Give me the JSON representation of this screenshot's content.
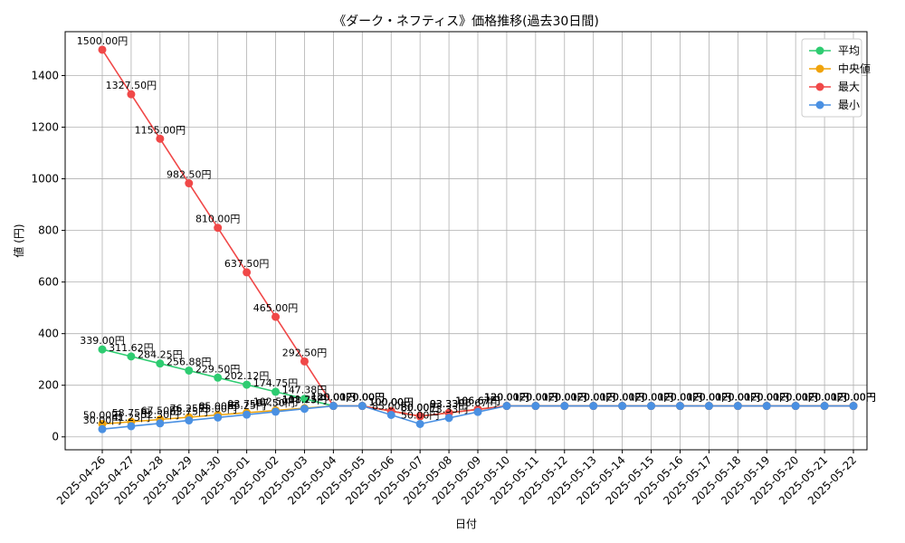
{
  "chart_data": {
    "type": "line",
    "title": "《ダーク・ネフティス》価格推移(過去30日間)",
    "xlabel": "日付",
    "ylabel": "値 (円)",
    "ylim": [
      -50,
      1570
    ],
    "yticks": [
      0,
      200,
      400,
      600,
      800,
      1000,
      1200,
      1400
    ],
    "grid": true,
    "legend_position": "top-right",
    "categories": [
      "2025-04-26",
      "2025-04-27",
      "2025-04-28",
      "2025-04-29",
      "2025-04-30",
      "2025-05-01",
      "2025-05-02",
      "2025-05-03",
      "2025-05-04",
      "2025-05-05",
      "2025-05-06",
      "2025-05-07",
      "2025-05-08",
      "2025-05-09",
      "2025-05-10",
      "2025-05-11",
      "2025-05-12",
      "2025-05-13",
      "2025-05-14",
      "2025-05-15",
      "2025-05-16",
      "2025-05-17",
      "2025-05-18",
      "2025-05-19",
      "2025-05-20",
      "2025-05-21",
      "2025-05-22"
    ],
    "series": [
      {
        "name": "平均",
        "color": "#2ecc71",
        "values": [
          339.0,
          311.62,
          284.25,
          256.88,
          229.5,
          202.12,
          174.75,
          147.38,
          120.0,
          120.0,
          100.0,
          80.0,
          93.33,
          106.67,
          120.0,
          120.0,
          120.0,
          120.0,
          120.0,
          120.0,
          120.0,
          120.0,
          120.0,
          120.0,
          120.0,
          120.0,
          120.0
        ],
        "labels": [
          "339.00円",
          "311.62円",
          "284.25円",
          "256.88円",
          "229.50円",
          "202.12円",
          "174.75円",
          "147.38円",
          "120.00円",
          "120.00円",
          "100.00円",
          "80.00円",
          "93.33円",
          "106.67円",
          "120.00円",
          "120.00円",
          "120.00円",
          "120.00円",
          "120.00円",
          "120.00円",
          "120.00円",
          "120.00円",
          "120.00円",
          "120.00円",
          "120.00円",
          "120.00円",
          "120.00円"
        ]
      },
      {
        "name": "中央値",
        "color": "#f0a30a",
        "values": [
          50.0,
          58.75,
          67.5,
          76.25,
          85.0,
          93.75,
          102.5,
          111.25,
          120.0,
          120.0,
          100.0,
          80.0,
          93.33,
          106.67,
          120.0,
          120.0,
          120.0,
          120.0,
          120.0,
          120.0,
          120.0,
          120.0,
          120.0,
          120.0,
          120.0,
          120.0,
          120.0
        ],
        "labels": [
          "50.00円",
          "58.75円",
          "67.50円",
          "76.25円",
          "85.00円",
          "93.75円",
          "102.50円",
          "111.25円",
          "120.00円",
          "120.00円",
          "100.00円",
          "80.00円",
          "93.33円",
          "106.67円",
          "120.00円",
          "120.00円",
          "120.00円",
          "120.00円",
          "120.00円",
          "120.00円",
          "120.00円",
          "120.00円",
          "120.00円",
          "120.00円",
          "120.00円",
          "120.00円",
          "120.00円"
        ]
      },
      {
        "name": "最大",
        "color": "#f04848",
        "values": [
          1500.0,
          1327.5,
          1155.0,
          982.5,
          810.0,
          637.5,
          465.0,
          292.5,
          120.0,
          120.0,
          100.0,
          80.0,
          93.33,
          106.67,
          120.0,
          120.0,
          120.0,
          120.0,
          120.0,
          120.0,
          120.0,
          120.0,
          120.0,
          120.0,
          120.0,
          120.0,
          120.0
        ],
        "labels": [
          "1500.00円",
          "1327.50円",
          "1155.00円",
          "982.50円",
          "810.00円",
          "637.50円",
          "465.00円",
          "292.50円",
          "120.00円",
          "120.00円",
          "100.00円",
          "80.00円",
          "93.33円",
          "106.67円",
          "120.00円",
          "120.00円",
          "120.00円",
          "120.00円",
          "120.00円",
          "120.00円",
          "120.00円",
          "120.00円",
          "120.00円",
          "120.00円",
          "120.00円",
          "120.00円",
          "120.00円"
        ]
      },
      {
        "name": "最小",
        "color": "#4a90e2",
        "values": [
          30.0,
          41.25,
          52.5,
          63.75,
          75.0,
          86.25,
          97.5,
          108.75,
          120.0,
          120.0,
          85.0,
          50.0,
          73.33,
          96.67,
          120.0,
          120.0,
          120.0,
          120.0,
          120.0,
          120.0,
          120.0,
          120.0,
          120.0,
          120.0,
          120.0,
          120.0,
          120.0
        ],
        "labels": [
          "30.00円",
          "41.25円",
          "52.50円",
          "63.75円",
          "75.00円",
          "86.25円",
          "97.50円",
          "108.75円",
          "120.00円",
          "120.00円",
          "85.00円",
          "50.00円",
          "73.33円",
          "96.67円",
          "120.00円",
          "120.00円",
          "120.00円",
          "120.00円",
          "120.00円",
          "120.00円",
          "120.00円",
          "120.00円",
          "120.00円",
          "120.00円",
          "120.00円",
          "120.00円",
          "120.00円"
        ]
      }
    ]
  }
}
